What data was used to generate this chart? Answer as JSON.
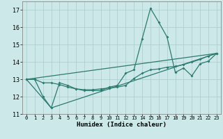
{
  "xlabel": "Humidex (Indice chaleur)",
  "xlim": [
    -0.5,
    23.5
  ],
  "ylim": [
    11,
    17.5
  ],
  "yticks": [
    11,
    12,
    13,
    14,
    15,
    16,
    17
  ],
  "xticks": [
    0,
    1,
    2,
    3,
    4,
    5,
    6,
    7,
    8,
    9,
    10,
    11,
    12,
    13,
    14,
    15,
    16,
    17,
    18,
    19,
    20,
    21,
    22,
    23
  ],
  "bg_color": "#cce8e8",
  "grid_color": "#aacccc",
  "line_color": "#2d7a6e",
  "line1_x": [
    0,
    1,
    2,
    3,
    4,
    5,
    6,
    7,
    8,
    9,
    10,
    11,
    12,
    13,
    14,
    15,
    16,
    17,
    18,
    19,
    20,
    21,
    22,
    23
  ],
  "line1_y": [
    13.0,
    13.0,
    12.0,
    11.35,
    12.8,
    12.65,
    12.45,
    12.35,
    12.35,
    12.35,
    12.55,
    12.65,
    13.35,
    13.55,
    15.35,
    17.1,
    16.3,
    15.45,
    13.4,
    13.65,
    13.2,
    13.9,
    14.05,
    14.5
  ],
  "line2_x": [
    0,
    1,
    2,
    3,
    4,
    5,
    6,
    7,
    8,
    9,
    10,
    11,
    12,
    13,
    14,
    15,
    16,
    17,
    18,
    19,
    20,
    21,
    22,
    23
  ],
  "line2_y": [
    13.0,
    13.0,
    12.8,
    12.8,
    12.7,
    12.55,
    12.45,
    12.4,
    12.4,
    12.45,
    12.5,
    12.55,
    12.65,
    13.05,
    13.35,
    13.55,
    13.6,
    13.7,
    13.75,
    13.85,
    14.0,
    14.15,
    14.35,
    14.5
  ],
  "line3_x": [
    0,
    23
  ],
  "line3_y": [
    13.0,
    14.5
  ],
  "line4_x": [
    0,
    3,
    23
  ],
  "line4_y": [
    13.0,
    11.35,
    14.5
  ]
}
